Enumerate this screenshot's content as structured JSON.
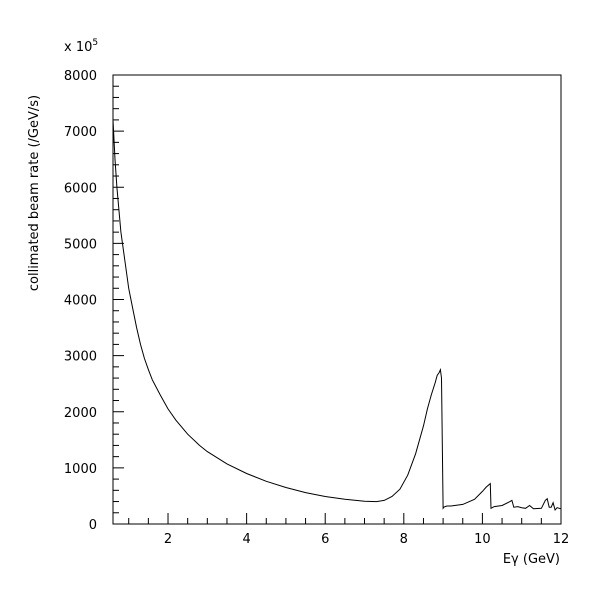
{
  "chart_data": {
    "type": "line",
    "title": "",
    "xlabel": "Eγ (GeV)",
    "ylabel": "collimated beam rate (/GeV/s)",
    "y_multiplier": "x 10",
    "y_multiplier_exponent": "5",
    "xlim": [
      0.6,
      12
    ],
    "ylim": [
      0,
      8000
    ],
    "x_ticks": [
      2,
      4,
      6,
      8,
      10,
      12
    ],
    "y_ticks": [
      0,
      1000,
      2000,
      3000,
      4000,
      5000,
      6000,
      7000,
      8000
    ],
    "grid": false,
    "line_color": "#000000",
    "series": [
      {
        "x": [
          0.6,
          0.65,
          0.7,
          0.8,
          0.9,
          1.0,
          1.1,
          1.2,
          1.3,
          1.4,
          1.5,
          1.6,
          1.8,
          2.0,
          2.2,
          2.5,
          2.8,
          3.0,
          3.5,
          4.0,
          4.5,
          5.0,
          5.5,
          6.0,
          6.5,
          7.0,
          7.3,
          7.5,
          7.7,
          7.9,
          8.1,
          8.3,
          8.5,
          8.6,
          8.7,
          8.8,
          8.85,
          8.9,
          8.93,
          8.96,
          9.0,
          9.02,
          9.05,
          9.1,
          9.2,
          9.5,
          9.8,
          10.0,
          10.1,
          10.2,
          10.22,
          10.25,
          10.3,
          10.5,
          10.7,
          10.75,
          10.8,
          10.9,
          11.0,
          11.1,
          11.2,
          11.3,
          11.5,
          11.6,
          11.65,
          11.7,
          11.75,
          11.8,
          11.85,
          11.9,
          12.0
        ],
        "y": [
          7200,
          6500,
          6000,
          5200,
          4700,
          4200,
          3850,
          3500,
          3200,
          2950,
          2750,
          2570,
          2300,
          2050,
          1850,
          1600,
          1400,
          1290,
          1070,
          900,
          760,
          650,
          560,
          490,
          440,
          405,
          400,
          420,
          490,
          620,
          870,
          1250,
          1750,
          2050,
          2300,
          2520,
          2650,
          2700,
          2750,
          2600,
          280,
          300,
          310,
          320,
          320,
          350,
          440,
          580,
          660,
          720,
          280,
          290,
          310,
          330,
          400,
          420,
          300,
          310,
          290,
          280,
          330,
          270,
          280,
          420,
          450,
          300,
          300,
          380,
          250,
          290,
          270
        ]
      }
    ]
  }
}
